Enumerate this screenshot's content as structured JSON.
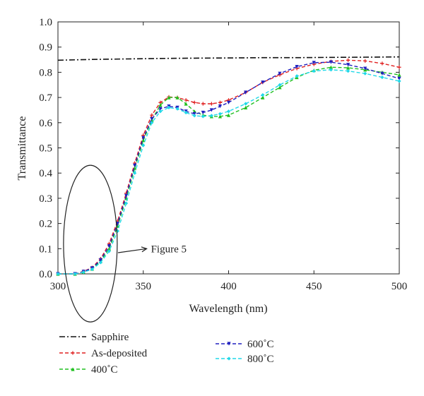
{
  "chart_data": {
    "type": "line",
    "title": "",
    "xlabel": "Wavelength (nm)",
    "ylabel": "Transmittance",
    "xlim": [
      300,
      500
    ],
    "ylim": [
      0.0,
      1.0
    ],
    "x_ticks": [
      "300",
      "350",
      "400",
      "450",
      "500"
    ],
    "y_ticks": [
      "0.0",
      "0.1",
      "0.2",
      "0.3",
      "0.4",
      "0.5",
      "0.6",
      "0.7",
      "0.8",
      "0.9",
      "1.0"
    ],
    "grid": false,
    "legend_position": "bottom",
    "annotation": {
      "text": "Figure 5",
      "circle_center": [
        319,
        0.12
      ],
      "arrow_to": [
        352,
        0.1
      ]
    },
    "series": [
      {
        "name": "Sapphire",
        "color": "#111111",
        "marker": "none",
        "dash": "dashdot",
        "points": [
          [
            300,
            0.848
          ],
          [
            320,
            0.851
          ],
          [
            340,
            0.853
          ],
          [
            360,
            0.855
          ],
          [
            380,
            0.856
          ],
          [
            400,
            0.857
          ],
          [
            420,
            0.858
          ],
          [
            440,
            0.858
          ],
          [
            460,
            0.859
          ],
          [
            480,
            0.86
          ],
          [
            500,
            0.861
          ]
        ]
      },
      {
        "name": "As-deposited",
        "color": "#e02020",
        "marker": "plus",
        "dash": "dash",
        "points": [
          [
            300,
            0.0
          ],
          [
            310,
            0.0
          ],
          [
            315,
            0.01
          ],
          [
            320,
            0.025
          ],
          [
            325,
            0.06
          ],
          [
            330,
            0.12
          ],
          [
            335,
            0.21
          ],
          [
            340,
            0.32
          ],
          [
            345,
            0.44
          ],
          [
            350,
            0.55
          ],
          [
            355,
            0.63
          ],
          [
            360,
            0.68
          ],
          [
            365,
            0.702
          ],
          [
            370,
            0.7
          ],
          [
            375,
            0.69
          ],
          [
            380,
            0.68
          ],
          [
            385,
            0.675
          ],
          [
            390,
            0.675
          ],
          [
            395,
            0.68
          ],
          [
            400,
            0.69
          ],
          [
            410,
            0.72
          ],
          [
            420,
            0.76
          ],
          [
            430,
            0.79
          ],
          [
            440,
            0.815
          ],
          [
            450,
            0.832
          ],
          [
            460,
            0.843
          ],
          [
            470,
            0.848
          ],
          [
            480,
            0.845
          ],
          [
            490,
            0.835
          ],
          [
            500,
            0.82
          ]
        ]
      },
      {
        "name": "400˚C",
        "color": "#20c020",
        "marker": "triangle-up",
        "dash": "dash",
        "points": [
          [
            300,
            0.0
          ],
          [
            310,
            0.0
          ],
          [
            315,
            0.008
          ],
          [
            320,
            0.02
          ],
          [
            325,
            0.05
          ],
          [
            330,
            0.1
          ],
          [
            335,
            0.19
          ],
          [
            340,
            0.3
          ],
          [
            345,
            0.42
          ],
          [
            350,
            0.53
          ],
          [
            355,
            0.61
          ],
          [
            360,
            0.67
          ],
          [
            365,
            0.7
          ],
          [
            370,
            0.7
          ],
          [
            375,
            0.675
          ],
          [
            380,
            0.645
          ],
          [
            385,
            0.63
          ],
          [
            390,
            0.625
          ],
          [
            395,
            0.625
          ],
          [
            400,
            0.63
          ],
          [
            410,
            0.66
          ],
          [
            420,
            0.7
          ],
          [
            430,
            0.74
          ],
          [
            440,
            0.78
          ],
          [
            450,
            0.808
          ],
          [
            460,
            0.82
          ],
          [
            470,
            0.818
          ],
          [
            480,
            0.81
          ],
          [
            490,
            0.8
          ],
          [
            500,
            0.79
          ]
        ]
      },
      {
        "name": "600˚C",
        "color": "#2020c0",
        "marker": "triangle-down",
        "dash": "dash",
        "points": [
          [
            300,
            0.0
          ],
          [
            310,
            0.0
          ],
          [
            315,
            0.009
          ],
          [
            320,
            0.023
          ],
          [
            325,
            0.055
          ],
          [
            330,
            0.11
          ],
          [
            335,
            0.2
          ],
          [
            340,
            0.31
          ],
          [
            345,
            0.43
          ],
          [
            350,
            0.54
          ],
          [
            355,
            0.615
          ],
          [
            360,
            0.655
          ],
          [
            365,
            0.665
          ],
          [
            370,
            0.66
          ],
          [
            375,
            0.645
          ],
          [
            380,
            0.635
          ],
          [
            385,
            0.64
          ],
          [
            390,
            0.65
          ],
          [
            395,
            0.665
          ],
          [
            400,
            0.68
          ],
          [
            410,
            0.72
          ],
          [
            420,
            0.76
          ],
          [
            430,
            0.795
          ],
          [
            440,
            0.822
          ],
          [
            450,
            0.838
          ],
          [
            460,
            0.84
          ],
          [
            470,
            0.83
          ],
          [
            480,
            0.815
          ],
          [
            490,
            0.795
          ],
          [
            500,
            0.775
          ]
        ]
      },
      {
        "name": "800˚C",
        "color": "#20d8e8",
        "marker": "diamond",
        "dash": "dash",
        "points": [
          [
            300,
            0.0
          ],
          [
            310,
            0.0
          ],
          [
            315,
            0.007
          ],
          [
            320,
            0.018
          ],
          [
            325,
            0.045
          ],
          [
            330,
            0.09
          ],
          [
            335,
            0.17
          ],
          [
            340,
            0.28
          ],
          [
            345,
            0.4
          ],
          [
            350,
            0.51
          ],
          [
            355,
            0.6
          ],
          [
            360,
            0.645
          ],
          [
            365,
            0.66
          ],
          [
            370,
            0.655
          ],
          [
            375,
            0.64
          ],
          [
            380,
            0.628
          ],
          [
            385,
            0.625
          ],
          [
            390,
            0.628
          ],
          [
            395,
            0.635
          ],
          [
            400,
            0.645
          ],
          [
            410,
            0.675
          ],
          [
            420,
            0.71
          ],
          [
            430,
            0.75
          ],
          [
            440,
            0.785
          ],
          [
            450,
            0.805
          ],
          [
            460,
            0.81
          ],
          [
            470,
            0.805
          ],
          [
            480,
            0.795
          ],
          [
            490,
            0.78
          ],
          [
            500,
            0.765
          ]
        ]
      }
    ]
  }
}
